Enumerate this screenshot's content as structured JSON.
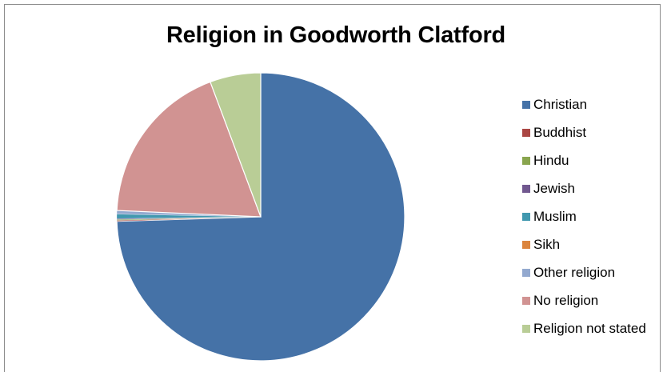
{
  "chart_data": {
    "type": "pie",
    "title": "Religion in Goodworth Clatford",
    "legend_position": "right",
    "slices": [
      {
        "label": "Christian",
        "value": 74.5,
        "color": "#4572A7"
      },
      {
        "label": "Buddhist",
        "value": 0.1,
        "color": "#AA4643"
      },
      {
        "label": "Hindu",
        "value": 0.1,
        "color": "#89A54E"
      },
      {
        "label": "Jewish",
        "value": 0.1,
        "color": "#71588F"
      },
      {
        "label": "Muslim",
        "value": 0.5,
        "color": "#4198AF"
      },
      {
        "label": "Sikh",
        "value": 0.0,
        "color": "#DB843D"
      },
      {
        "label": "Other religion",
        "value": 0.4,
        "color": "#93A9CF"
      },
      {
        "label": "No religion",
        "value": 18.6,
        "color": "#D19392"
      },
      {
        "label": "Religion not stated",
        "value": 5.7,
        "color": "#B9CD96"
      }
    ]
  }
}
